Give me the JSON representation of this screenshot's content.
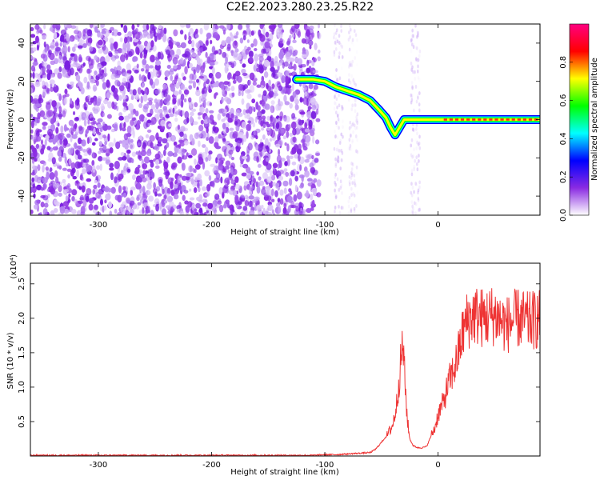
{
  "title": "C2E2.2023.280.23.25.R22",
  "chart_data": [
    {
      "type": "heatmap",
      "xlabel": "Height of straight line (km)",
      "ylabel": "Frequency (Hz)",
      "xlim": [
        -360,
        90
      ],
      "ylim": [
        -50,
        50
      ],
      "x_ticks": [
        "-300",
        "-200",
        "-100",
        "0"
      ],
      "y_ticks": [
        "-40",
        "-20",
        "0",
        "20",
        "40"
      ],
      "colorbar": {
        "label": "Normalized spectral amplitude",
        "range": [
          0.0,
          1.0
        ],
        "ticks": [
          "0.0",
          "0.2",
          "0.4",
          "0.6",
          "0.8"
        ],
        "colors": [
          "#ffffff",
          "#8a2be2",
          "#0000ff",
          "#00ffff",
          "#00ff00",
          "#ffff00",
          "#ff0000",
          "#ff0080"
        ]
      },
      "ridge": {
        "x": [
          -125,
          -110,
          -100,
          -90,
          -80,
          -70,
          -60,
          -52,
          -46,
          -42,
          -38,
          -30,
          -20,
          -10,
          0,
          20,
          40,
          60,
          90
        ],
        "y": [
          21,
          21,
          20,
          17,
          15,
          13,
          10,
          5,
          1,
          -4,
          -8,
          0,
          0,
          0,
          0,
          0,
          0,
          0,
          0
        ],
        "scattered_noise_x_range": [
          -360,
          -105
        ]
      }
    },
    {
      "type": "line",
      "xlabel": "Height of straight line (km)",
      "ylabel": "SNR (10 * v/v)",
      "y_multiplier": "(x10⁴)",
      "xlim": [
        -360,
        90
      ],
      "ylim": [
        0,
        2.8
      ],
      "x_ticks": [
        "-300",
        "-200",
        "-100",
        "0"
      ],
      "y_ticks": [
        "0.5",
        "1.0",
        "1.5",
        "2.0",
        "2.5"
      ],
      "series": [
        {
          "color": "#ee3333",
          "x": [
            -360,
            -300,
            -200,
            -110,
            -100,
            -90,
            -60,
            -55,
            -50,
            -45,
            -40,
            -37,
            -35,
            -33,
            -31,
            -29,
            -27,
            -25,
            -22,
            -18,
            -14,
            -10,
            -6,
            -3,
            0,
            5,
            10,
            15,
            18,
            22,
            25,
            28,
            32,
            40,
            50,
            60,
            70,
            80,
            90
          ],
          "y": [
            0.01,
            0.01,
            0.01,
            0.01,
            0.02,
            0.02,
            0.05,
            0.1,
            0.2,
            0.3,
            0.45,
            0.7,
            1.0,
            1.35,
            1.65,
            1.0,
            0.5,
            0.25,
            0.15,
            0.12,
            0.12,
            0.14,
            0.3,
            0.4,
            0.6,
            0.8,
            1.1,
            1.3,
            1.5,
            1.8,
            1.95,
            2.0,
            2.05,
            2.0,
            2.05,
            1.9,
            2.0,
            1.95,
            2.0
          ]
        }
      ]
    }
  ]
}
